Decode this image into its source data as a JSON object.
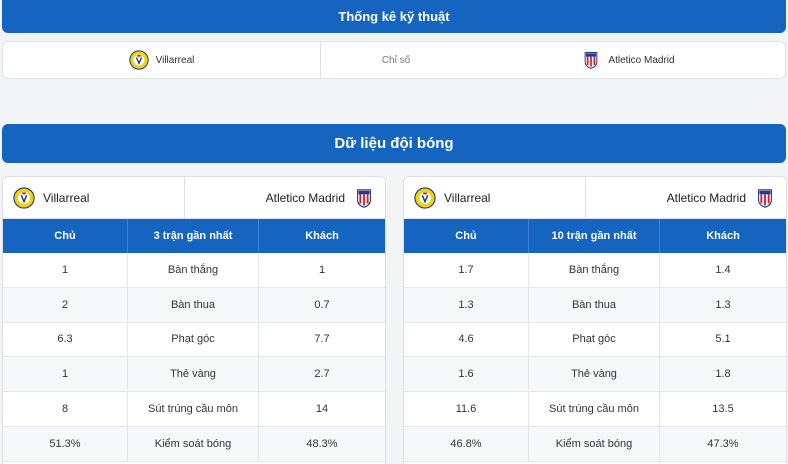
{
  "header": {
    "title": "Thống kê kỹ thuật",
    "home": "Villarreal",
    "middle": "Chỉ số",
    "away": "Atletico Madrid"
  },
  "section": {
    "title": "Dữ liệu đội bóng"
  },
  "left": {
    "home": "Villarreal",
    "away": "Atletico Madrid",
    "columns": [
      "Chủ",
      "3 trận gần nhất",
      "Khách"
    ],
    "rows": [
      [
        "1",
        "Bàn thắng",
        "1"
      ],
      [
        "2",
        "Bàn thua",
        "0.7"
      ],
      [
        "6.3",
        "Phạt góc",
        "7.7"
      ],
      [
        "1",
        "Thẻ vàng",
        "2.7"
      ],
      [
        "8",
        "Sút trúng cầu môn",
        "14"
      ],
      [
        "51.3%",
        "Kiểm soát bóng",
        "48.3%"
      ]
    ]
  },
  "right": {
    "home": "Villarreal",
    "away": "Atletico Madrid",
    "columns": [
      "Chủ",
      "10 trận gần nhất",
      "Khách"
    ],
    "rows": [
      [
        "1.7",
        "Bàn thắng",
        "1.4"
      ],
      [
        "1.3",
        "Bàn thua",
        "1.3"
      ],
      [
        "4.6",
        "Phạt góc",
        "5.1"
      ],
      [
        "1.6",
        "Thẻ vàng",
        "1.8"
      ],
      [
        "11.6",
        "Sút trúng cầu môn",
        "13.5"
      ],
      [
        "46.8%",
        "Kiểm soát bóng",
        "47.3%"
      ]
    ]
  },
  "icons": {
    "home_crest": "villarreal-crest-icon",
    "away_crest": "atletico-crest-icon"
  },
  "colors": {
    "accent": "#1565c0"
  }
}
